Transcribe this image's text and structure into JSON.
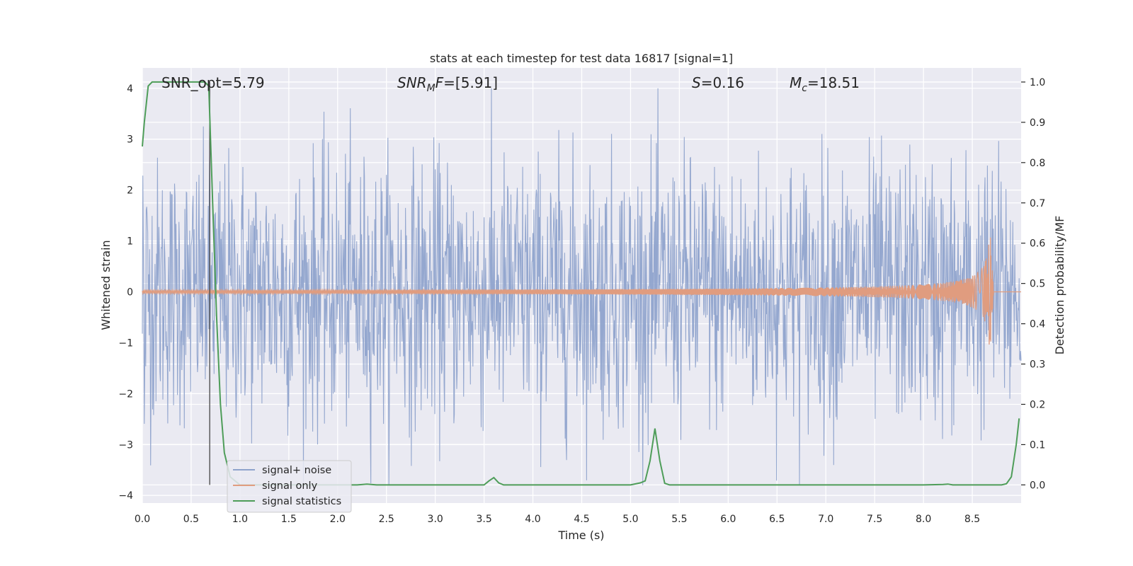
{
  "chart_data": {
    "type": "line",
    "title": "stats at each timestep for test data 16817 [signal=1]",
    "xlabel": "Time (s)",
    "ylabel": "Whitened strain",
    "ylabel_right": "Detection probability/MF",
    "xlim": [
      0,
      9
    ],
    "ylim": [
      -4.15,
      4.4
    ],
    "ylim_right": [
      -0.045,
      1.035
    ],
    "x_ticks": [
      "0.0",
      "0.5",
      "1.0",
      "1.5",
      "2.0",
      "2.5",
      "3.0",
      "3.5",
      "4.0",
      "4.5",
      "5.0",
      "5.5",
      "6.0",
      "6.5",
      "7.0",
      "7.5",
      "8.0",
      "8.5"
    ],
    "x_tick_values": [
      0,
      0.5,
      1,
      1.5,
      2,
      2.5,
      3,
      3.5,
      4,
      4.5,
      5,
      5.5,
      6,
      6.5,
      7,
      7.5,
      8,
      8.5
    ],
    "y_ticks": [
      "−4",
      "−3",
      "−2",
      "−1",
      "0",
      "1",
      "2",
      "3",
      "4"
    ],
    "y_tick_values": [
      -4,
      -3,
      -2,
      -1,
      0,
      1,
      2,
      3,
      4
    ],
    "y_right_ticks": [
      "0.0",
      "0.1",
      "0.2",
      "0.3",
      "0.4",
      "0.5",
      "0.6",
      "0.7",
      "0.8",
      "0.9",
      "1.0"
    ],
    "y_right_tick_values": [
      0,
      0.1,
      0.2,
      0.3,
      0.4,
      0.5,
      0.6,
      0.7,
      0.8,
      0.9,
      1.0
    ],
    "grid": true,
    "legend": "lower-left",
    "annotations": {
      "snr_opt": "SNR_opt=5.79",
      "snr_mf_italic": "SNR",
      "snr_mf_sub": "M",
      "snr_mf_rest_italic": "F",
      "snr_mf_value": "=[5.91]",
      "s_italic": "S",
      "s_value": "=0.16",
      "mc_italic": "M",
      "mc_sub": "c",
      "mc_value": "=18.51"
    },
    "vertical_marker_x": 0.69,
    "series": [
      {
        "name": "signal+ noise",
        "axis": "left",
        "color": "#8fa3cc",
        "description_values": {
          "x_range": [
            0,
            9
          ],
          "typical_amplitude": 1.3,
          "max": 4.0,
          "min": -3.8
        }
      },
      {
        "name": "signal only",
        "axis": "left",
        "color": "#e09c7f",
        "chirp": {
          "start_x": 0.0,
          "merger_x": 8.68,
          "peak_amplitude": 1.25
        }
      },
      {
        "name": "signal statistics",
        "axis": "right",
        "color": "#4e9d59",
        "x": [
          0,
          0.02,
          0.06,
          0.1,
          0.15,
          0.2,
          0.3,
          0.4,
          0.5,
          0.6,
          0.64,
          0.68,
          0.72,
          0.76,
          0.8,
          0.84,
          0.9,
          1.0,
          1.2,
          1.5,
          2.0,
          2.2,
          2.3,
          2.4,
          2.5,
          2.6,
          3.0,
          3.5,
          3.55,
          3.6,
          3.65,
          3.7,
          4.0,
          4.5,
          5.0,
          5.1,
          5.15,
          5.2,
          5.25,
          5.3,
          5.35,
          5.4,
          5.5,
          6.0,
          6.5,
          7.0,
          7.5,
          8.0,
          8.2,
          8.25,
          8.3,
          8.5,
          8.8,
          8.85,
          8.9,
          8.95,
          8.98
        ],
        "y": [
          0.84,
          0.9,
          0.99,
          1.0,
          1.0,
          1.0,
          1.0,
          1.0,
          1.0,
          1.0,
          1.0,
          0.99,
          0.7,
          0.42,
          0.2,
          0.08,
          0.02,
          0.0,
          0.0,
          0.0,
          0.0,
          0.0,
          0.002,
          0.0,
          0.0,
          0.0,
          0.0,
          0.0,
          0.01,
          0.018,
          0.005,
          0.0,
          0.0,
          0.0,
          0.0,
          0.005,
          0.01,
          0.06,
          0.14,
          0.06,
          0.004,
          0.0,
          0.0,
          0.0,
          0.0,
          0.0,
          0.0,
          0.0,
          0.001,
          0.002,
          0.0,
          0.0,
          0.0,
          0.003,
          0.02,
          0.1,
          0.165
        ]
      }
    ]
  }
}
